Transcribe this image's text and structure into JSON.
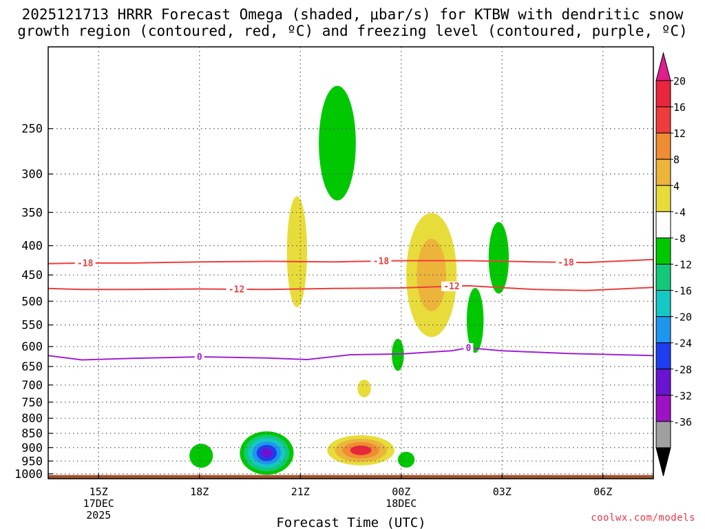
{
  "title_line1": "2025121713 HRRR Forecast Omega (shaded, μbar/s) for KTBW with dendritic snow",
  "title_line2": "growth region (contoured, red, ºC) and freezing level (contoured, purple, ºC)",
  "watermark": "coolwx.com/models",
  "chart_data": {
    "type": "heatmap",
    "title": "2025121713 HRRR Forecast Omega (shaded, μbar/s) for KTBW with dendritic snow growth region (contoured, red, ºC) and freezing level (contoured, purple, ºC)",
    "xlabel": "Forecast Time (UTC)",
    "ylabel": "",
    "xlim": [
      13.5,
      31.5
    ],
    "ylim": [
      1020,
      180
    ],
    "x_ticks": [
      {
        "x": 15,
        "lines": [
          "15Z",
          "17DEC",
          "2025"
        ]
      },
      {
        "x": 18,
        "lines": [
          "18Z"
        ]
      },
      {
        "x": 21,
        "lines": [
          "21Z"
        ]
      },
      {
        "x": 24,
        "lines": [
          "00Z",
          "18DEC"
        ]
      },
      {
        "x": 27,
        "lines": [
          "03Z"
        ]
      },
      {
        "x": 30,
        "lines": [
          "06Z"
        ]
      }
    ],
    "y_ticks": [
      250,
      300,
      350,
      400,
      450,
      500,
      550,
      600,
      650,
      700,
      750,
      800,
      850,
      900,
      950,
      1000
    ],
    "grid": true,
    "colorbar": {
      "labels": [
        "20",
        "16",
        "12",
        "8",
        "4",
        "-4",
        "-8",
        "-12",
        "-16",
        "-20",
        "-24",
        "-28",
        "-32",
        "-36"
      ],
      "colors": [
        "#e01e8c",
        "#e8263c",
        "#ee3c3c",
        "#f08c32",
        "#ecb43a",
        "#e8dc3a",
        "#ffffff",
        "#00c800",
        "#12c87a",
        "#14c8c4",
        "#1e96f0",
        "#1e3cf0",
        "#6a14d2",
        "#9c12c4",
        "#a0a0a0",
        "#000000"
      ]
    },
    "omega_features": [
      {
        "kind": "ascent",
        "x": 18.05,
        "p": 930,
        "dx": 0.35,
        "dp": 45,
        "levels": [
          "#00c800"
        ]
      },
      {
        "kind": "ascent",
        "x": 20.0,
        "p": 920,
        "dx": 0.8,
        "dp": 80,
        "levels": [
          "#00c800",
          "#12c87a",
          "#14c8c4",
          "#1e96f0",
          "#1e3cf0",
          "#6a14d2"
        ]
      },
      {
        "kind": "ascent",
        "x": 22.1,
        "p": 265,
        "dx": 0.55,
        "dp": 60,
        "levels": [
          "#00c800"
        ],
        "shape": "upper"
      },
      {
        "kind": "ascent",
        "x": 23.9,
        "p": 620,
        "dx": 0.18,
        "dp": 40,
        "levels": [
          "#00c800"
        ]
      },
      {
        "kind": "ascent",
        "x": 24.15,
        "p": 945,
        "dx": 0.25,
        "dp": 30,
        "levels": [
          "#00c800"
        ]
      },
      {
        "kind": "ascent",
        "x": 26.2,
        "p": 540,
        "dx": 0.25,
        "dp": 70,
        "levels": [
          "#00c800"
        ]
      },
      {
        "kind": "ascent",
        "x": 26.9,
        "p": 420,
        "dx": 0.3,
        "dp": 60,
        "levels": [
          "#00c800"
        ]
      },
      {
        "kind": "descent",
        "x": 20.9,
        "p": 410,
        "dx": 0.3,
        "dp": 90,
        "levels": [
          "#e8dc3a"
        ]
      },
      {
        "kind": "descent",
        "x": 22.8,
        "p": 910,
        "dx": 1.0,
        "dp": 55,
        "levels": [
          "#e8dc3a",
          "#ecb43a",
          "#f08c32",
          "#e8263c"
        ]
      },
      {
        "kind": "descent",
        "x": 22.9,
        "p": 710,
        "dx": 0.2,
        "dp": 25,
        "levels": [
          "#e8dc3a"
        ]
      },
      {
        "kind": "descent",
        "x": 24.9,
        "p": 450,
        "dx": 0.75,
        "dp": 110,
        "levels": [
          "#e8dc3a",
          "#ecb43a"
        ]
      }
    ],
    "contours": [
      {
        "name": "-18",
        "color": "#ee3c3c",
        "points": [
          [
            13.5,
            430
          ],
          [
            14.5,
            429
          ],
          [
            16,
            429
          ],
          [
            18,
            427
          ],
          [
            20,
            426
          ],
          [
            22,
            427
          ],
          [
            24,
            425
          ],
          [
            26,
            425
          ],
          [
            28,
            427
          ],
          [
            29.5,
            428
          ],
          [
            31.5,
            423
          ]
        ],
        "labels_at": [
          14.6,
          23.4,
          28.9
        ]
      },
      {
        "name": "-12",
        "color": "#ee3c3c",
        "points": [
          [
            13.5,
            475
          ],
          [
            14.5,
            477
          ],
          [
            16,
            477
          ],
          [
            18,
            476
          ],
          [
            20,
            477
          ],
          [
            22,
            475
          ],
          [
            24,
            474
          ],
          [
            26,
            470
          ],
          [
            28,
            477
          ],
          [
            29.5,
            479
          ],
          [
            31.5,
            473
          ]
        ],
        "labels_at": [
          19.1,
          25.5
        ]
      },
      {
        "name": "0",
        "color": "#a020d2",
        "points": [
          [
            13.5,
            622
          ],
          [
            14.5,
            633
          ],
          [
            16,
            629
          ],
          [
            18,
            625
          ],
          [
            20,
            628
          ],
          [
            21.2,
            632
          ],
          [
            22.5,
            620
          ],
          [
            24,
            618
          ],
          [
            25.5,
            610
          ],
          [
            26,
            603
          ],
          [
            27,
            610
          ],
          [
            29,
            617
          ],
          [
            31.5,
            622
          ]
        ],
        "labels_at": [
          18.0,
          26.0
        ]
      }
    ],
    "terrain": {
      "p_top": 1005,
      "color": "#a0522d"
    }
  }
}
